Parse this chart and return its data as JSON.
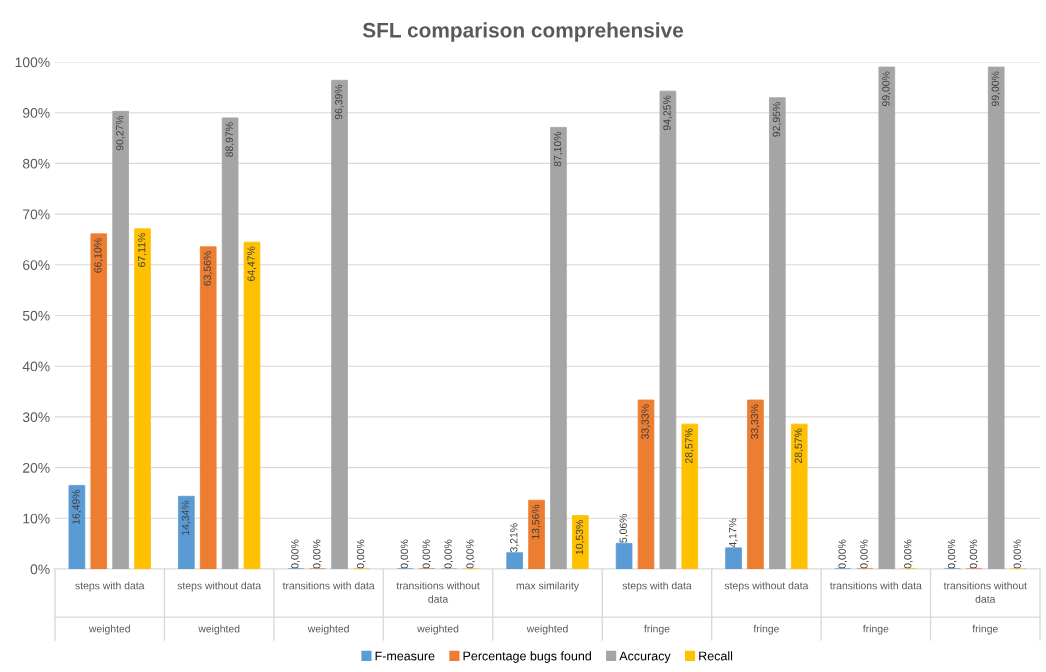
{
  "chart_data": {
    "type": "bar",
    "title": "SFL comparison comprehensive",
    "categories": [
      "steps with data\nweighted",
      "steps without data\nweighted",
      "transitions with data\nweighted",
      "transitions without\ndata\nweighted",
      "max similarity\nweighted",
      "steps with data\nfringe",
      "steps without data\nfringe",
      "transitions with data\nfringe",
      "transitions without\ndata\nfringe"
    ],
    "series": [
      {
        "name": "F-measure",
        "color": "#5b9bd5",
        "values": [
          16.49,
          14.34,
          0,
          0,
          3.21,
          5.06,
          4.17,
          0,
          0
        ],
        "value_labels": [
          "16,49%",
          "14,34%",
          "0,00%",
          "0,00%",
          "3,21%",
          "5,06%",
          "4,17%",
          "0,00%",
          "0,00%"
        ]
      },
      {
        "name": "Percentage bugs found",
        "color": "#ed7d31",
        "values": [
          66.1,
          63.56,
          0,
          0,
          13.56,
          33.33,
          33.33,
          0,
          0
        ],
        "value_labels": [
          "66,10%",
          "63,56%",
          "0,00%",
          "0,00%",
          "13,56%",
          "33,33%",
          "33,33%",
          "0,00%",
          "0,00%"
        ]
      },
      {
        "name": "Accuracy",
        "color": "#a5a5a5",
        "values": [
          90.27,
          88.97,
          96.39,
          0,
          87.1,
          94.25,
          92.95,
          99.0,
          99.0
        ],
        "value_labels": [
          "90,27%",
          "88,97%",
          "96,39%",
          "0,00%",
          "87,10%",
          "94,25%",
          "92,95%",
          "99,00%",
          "99,00%"
        ]
      },
      {
        "name": "Recall",
        "color": "#ffc000",
        "values": [
          67.11,
          64.47,
          0,
          0,
          10.53,
          28.57,
          28.57,
          0,
          0
        ],
        "value_labels": [
          "67,11%",
          "64,47%",
          "0,00%",
          "0,00%",
          "10,53%",
          "28,57%",
          "28,57%",
          "0,00%",
          "0,00%"
        ]
      }
    ],
    "ylim": [
      0,
      100
    ],
    "yticks": [
      {
        "value": 0,
        "label": "0%"
      },
      {
        "value": 10,
        "label": "10%"
      },
      {
        "value": 20,
        "label": "20%"
      },
      {
        "value": 30,
        "label": "30%"
      },
      {
        "value": 40,
        "label": "40%"
      },
      {
        "value": 50,
        "label": "50%"
      },
      {
        "value": 60,
        "label": "60%"
      },
      {
        "value": 70,
        "label": "70%"
      },
      {
        "value": 80,
        "label": "80%"
      },
      {
        "value": 90,
        "label": "90%"
      },
      {
        "value": 100,
        "label": "100%"
      }
    ],
    "grid": "y",
    "legend": "bottom"
  }
}
